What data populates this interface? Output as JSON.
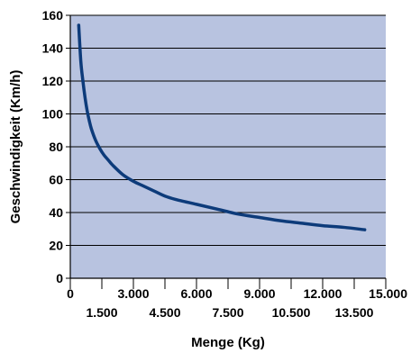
{
  "chart_data": {
    "type": "line",
    "title": "",
    "xlabel": "Menge (Kg)",
    "ylabel": "Geschwindigkeit  (Km/h)",
    "xlim": [
      0,
      15000
    ],
    "ylim": [
      0,
      160
    ],
    "grid": {
      "x": false,
      "y": true
    },
    "legend": "none",
    "x_ticks_upper": [
      {
        "value": 0,
        "label": "0"
      },
      {
        "value": 3000,
        "label": "3.000"
      },
      {
        "value": 6000,
        "label": "6.000"
      },
      {
        "value": 9000,
        "label": "9.000"
      },
      {
        "value": 12000,
        "label": "12.000"
      },
      {
        "value": 15000,
        "label": "15.000"
      }
    ],
    "x_ticks_lower": [
      {
        "value": 1500,
        "label": "1.500"
      },
      {
        "value": 4500,
        "label": "4.500"
      },
      {
        "value": 7500,
        "label": "7.500"
      },
      {
        "value": 10500,
        "label": "10.500"
      },
      {
        "value": 13500,
        "label": "13.500"
      }
    ],
    "y_ticks": [
      {
        "value": 0,
        "label": "0"
      },
      {
        "value": 20,
        "label": "20"
      },
      {
        "value": 40,
        "label": "40"
      },
      {
        "value": 60,
        "label": "60"
      },
      {
        "value": 80,
        "label": "80"
      },
      {
        "value": 100,
        "label": "100"
      },
      {
        "value": 120,
        "label": "120"
      },
      {
        "value": 140,
        "label": "140"
      },
      {
        "value": 160,
        "label": "160"
      }
    ],
    "series": [
      {
        "x": [
          400,
          500,
          600,
          700,
          800,
          900,
          1000,
          1200,
          1400,
          1600,
          1800,
          2000,
          2500,
          3000,
          3500,
          4000,
          4500,
          5000,
          6000,
          7000,
          8000,
          9000,
          10000,
          11000,
          12000,
          13000,
          14000
        ],
        "y": [
          154,
          132,
          120,
          110,
          102,
          96,
          91,
          84,
          79,
          75,
          72,
          69,
          63,
          59,
          56,
          53,
          50,
          48,
          45,
          42,
          39,
          37,
          35,
          33.5,
          32,
          31,
          29.5
        ]
      }
    ],
    "colors": {
      "plot_background": "#b8c3e0",
      "line": "#0d3b7a",
      "gridline": "#000000",
      "axis": "#000000"
    }
  }
}
